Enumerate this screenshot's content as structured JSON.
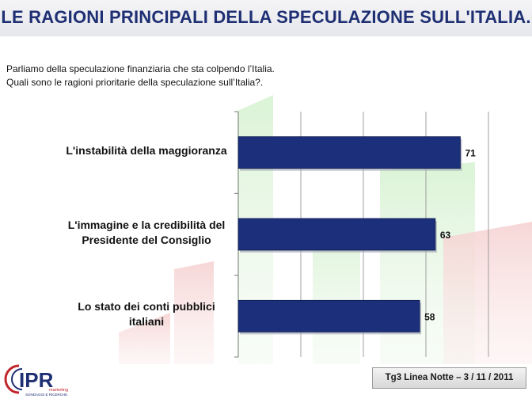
{
  "title": "LE RAGIONI PRINCIPALI DELLA SPECULAZIONE SULL'ITALIA.",
  "question": {
    "line1": "Parliamo della speculazione  finanziaria  che sta colpendo l’Italia.",
    "line2": "Quali sono  le ragioni prioritarie della speculazione  sull’Italia?."
  },
  "footer": "Tg3 Linea Notte – 3 / 11 / 2011",
  "logo": {
    "text": "IPR",
    "tagline1": "marketing",
    "tagline2": "SONDAGGI E RICERCHE",
    "color": "#1f2f73",
    "accent": "#c0262c"
  },
  "colors": {
    "bar": "#1c2f7a",
    "title": "#1f2f73"
  },
  "chart_data": {
    "type": "bar",
    "orientation": "horizontal",
    "categories": [
      "L'instabilità della maggioranza",
      "L'immagine e la credibilità del Presidente del Consiglio",
      "Lo stato dei conti pubblici italiani"
    ],
    "category_lines": [
      [
        "L'instabilità della maggioranza"
      ],
      [
        "L'immagine e la credibilità del",
        "Presidente del Consiglio"
      ],
      [
        "Lo stato dei conti pubblici",
        "italiani"
      ]
    ],
    "values": [
      71,
      63,
      58
    ],
    "data_labels": [
      "71",
      "63",
      "58"
    ],
    "xlim": [
      0,
      80
    ],
    "grid": true
  }
}
